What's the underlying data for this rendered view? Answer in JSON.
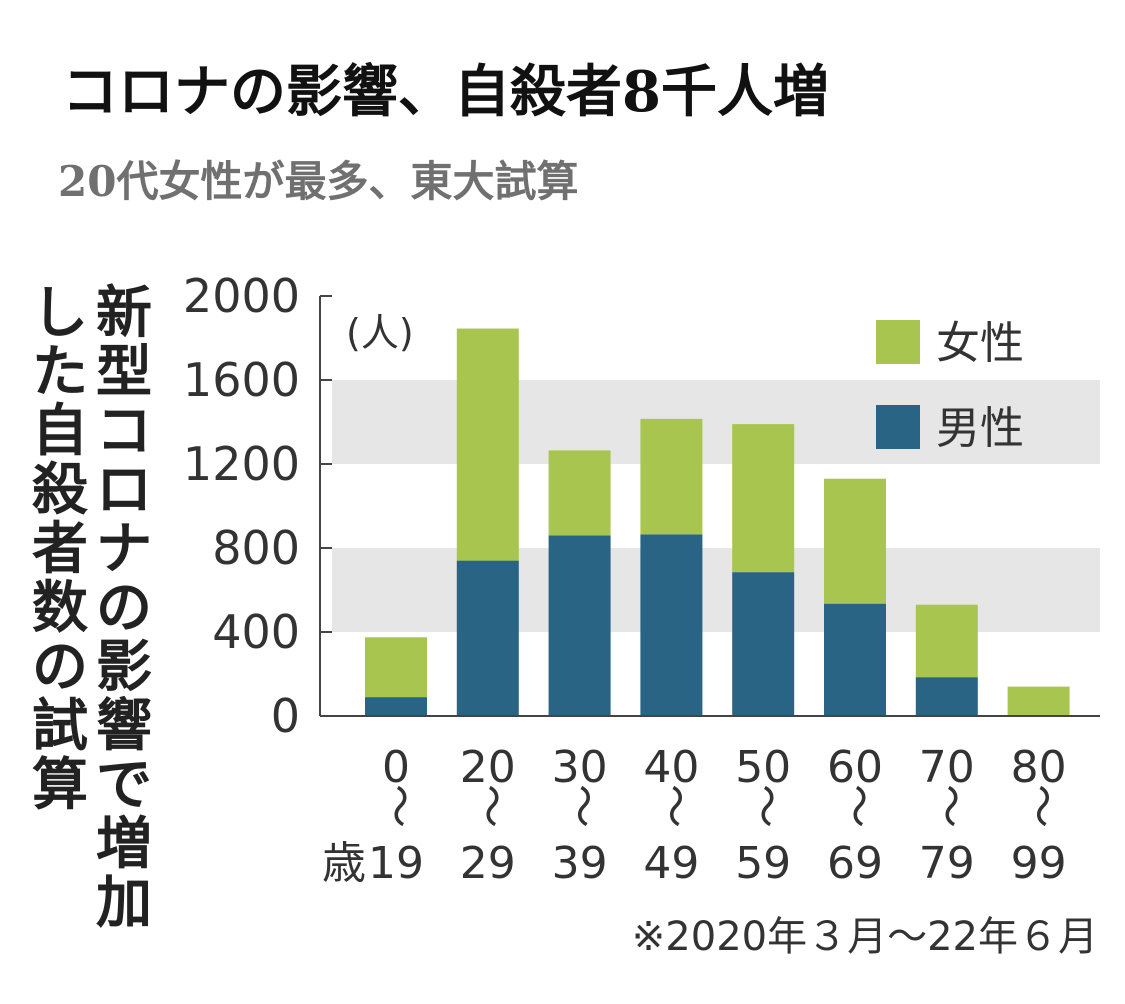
{
  "headline": "コロナの影響、自殺者8千人増",
  "subheadline": "20代女性が最多、東大試算",
  "chart_data": {
    "type": "bar",
    "stacked": true,
    "title": "",
    "ylabel_lines": [
      "新型コロナの影響で増加",
      "した自殺者数の試算"
    ],
    "unit_label": "(人)",
    "ylim": [
      0,
      2000
    ],
    "yticks": [
      0,
      400,
      800,
      1200,
      1600,
      2000
    ],
    "ytick_labels": [
      "0",
      "400",
      "800",
      "1200",
      "1600",
      "2000"
    ],
    "grid": "horizontal alternating bands",
    "categories": [
      {
        "start": "0",
        "sep": "〜",
        "end": "19",
        "prefix": "歳"
      },
      {
        "start": "20",
        "sep": "〜",
        "end": "29"
      },
      {
        "start": "30",
        "sep": "〜",
        "end": "39"
      },
      {
        "start": "40",
        "sep": "〜",
        "end": "49"
      },
      {
        "start": "50",
        "sep": "〜",
        "end": "59"
      },
      {
        "start": "60",
        "sep": "〜",
        "end": "69"
      },
      {
        "start": "70",
        "sep": "〜",
        "end": "79"
      },
      {
        "start": "80",
        "sep": "〜",
        "end": "99"
      }
    ],
    "series": [
      {
        "name": "男性",
        "color": "#2a6485",
        "values": [
          90,
          740,
          860,
          865,
          685,
          535,
          185,
          0
        ]
      },
      {
        "name": "女性",
        "color": "#a8c64f",
        "values": [
          285,
          1105,
          405,
          550,
          705,
          595,
          345,
          140
        ]
      }
    ],
    "legend_order": [
      "女性",
      "男性"
    ],
    "legend_position": "top-right",
    "note": "※2020年３月〜22年６月",
    "colors": {
      "band": "#e6e6e6",
      "axis": "#444444",
      "text": "#333333"
    }
  }
}
